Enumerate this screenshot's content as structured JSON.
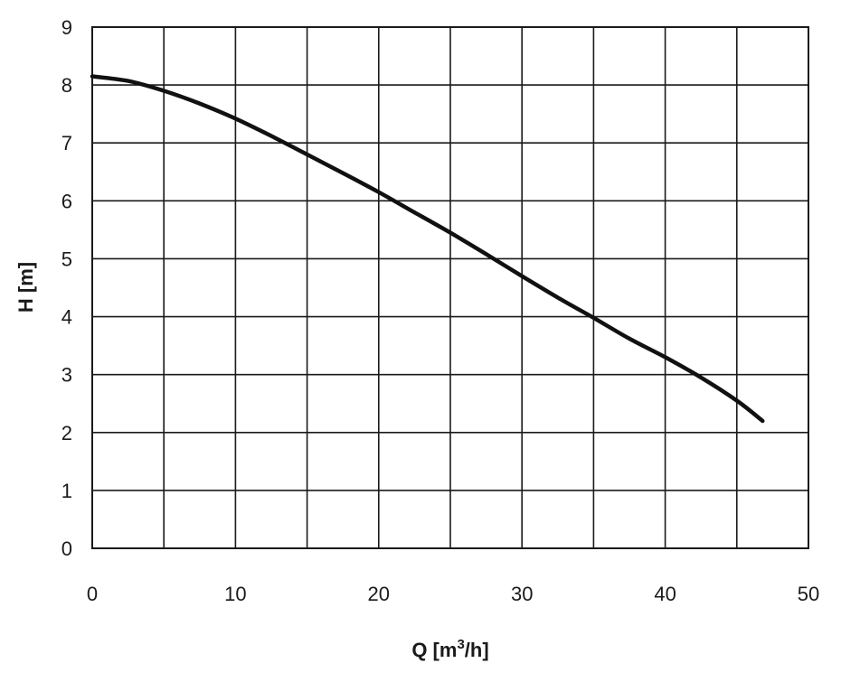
{
  "chart_data": {
    "type": "line",
    "title": "",
    "xlabel": {
      "main": "Q [m",
      "sup": "3",
      "tail": "/h]"
    },
    "ylabel": "H [m]",
    "xlim": [
      0,
      50
    ],
    "ylim": [
      0,
      9
    ],
    "xticks": [
      0,
      10,
      20,
      30,
      40,
      50
    ],
    "yticks": [
      0,
      1,
      2,
      3,
      4,
      5,
      6,
      7,
      8,
      9
    ],
    "x_gridlines": [
      0,
      5,
      10,
      15,
      20,
      25,
      30,
      35,
      40,
      45,
      50
    ],
    "y_gridlines": [
      0,
      1,
      2,
      3,
      4,
      5,
      6,
      7,
      8,
      9
    ],
    "grid": true,
    "series": [
      {
        "color": "#111111",
        "x": [
          0,
          2.5,
          5,
          7.5,
          10,
          12.5,
          15,
          17.5,
          20,
          22.5,
          25,
          27.5,
          30,
          32.5,
          35,
          37.5,
          40,
          42.5,
          45,
          46.8
        ],
        "y": [
          8.15,
          8.07,
          7.9,
          7.68,
          7.42,
          7.12,
          6.8,
          6.48,
          6.15,
          5.8,
          5.45,
          5.08,
          4.7,
          4.33,
          3.98,
          3.62,
          3.3,
          2.95,
          2.55,
          2.2
        ]
      }
    ]
  }
}
